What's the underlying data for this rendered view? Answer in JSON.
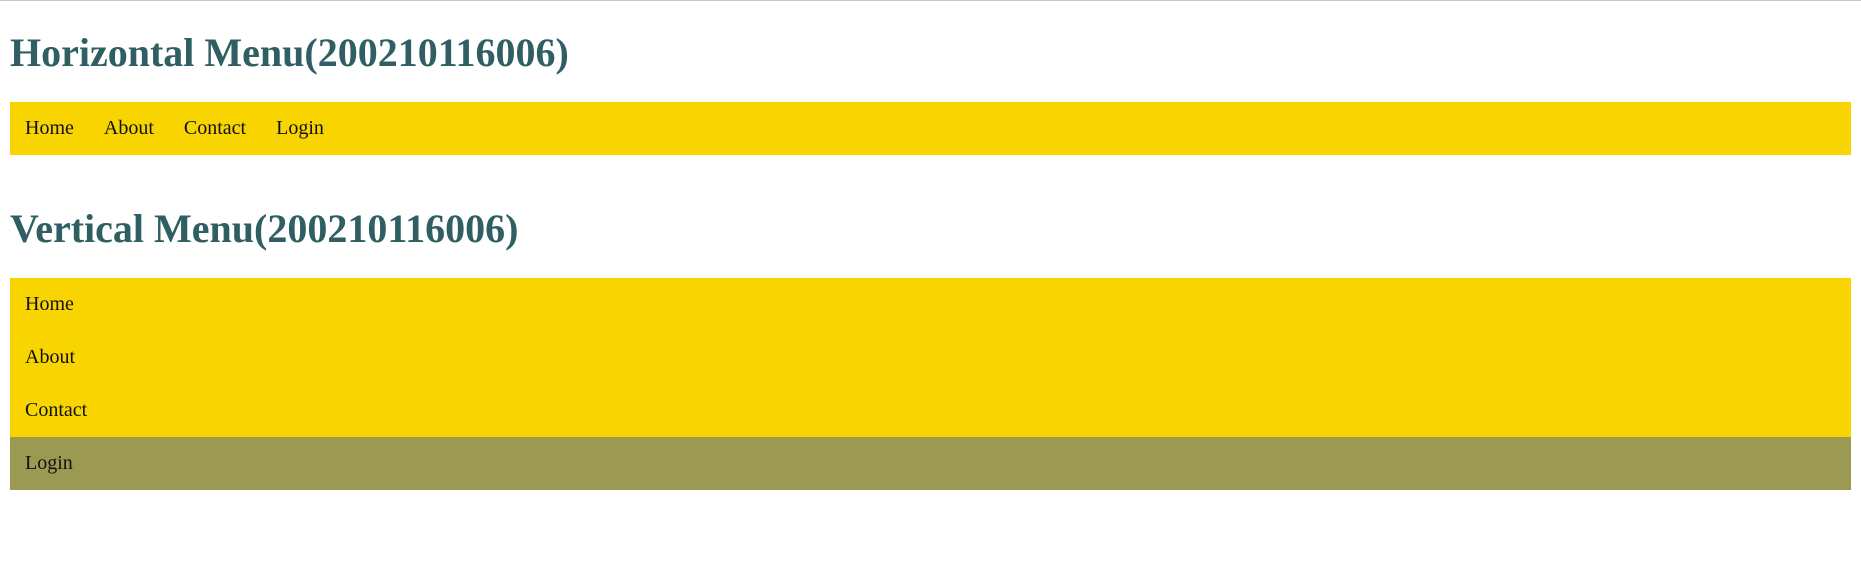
{
  "horizontal": {
    "title": "Horizontal Menu(200210116006)",
    "items": [
      "Home",
      "About",
      "Contact",
      "Login"
    ]
  },
  "vertical": {
    "title": "Vertical Menu(200210116006)",
    "items": [
      "Home",
      "About",
      "Contact",
      "Login"
    ],
    "highlighted_item": "Login"
  },
  "colors": {
    "heading": "#2f5f63",
    "menu_bg": "#f8d400",
    "highlight_bg": "#9c9a52"
  }
}
